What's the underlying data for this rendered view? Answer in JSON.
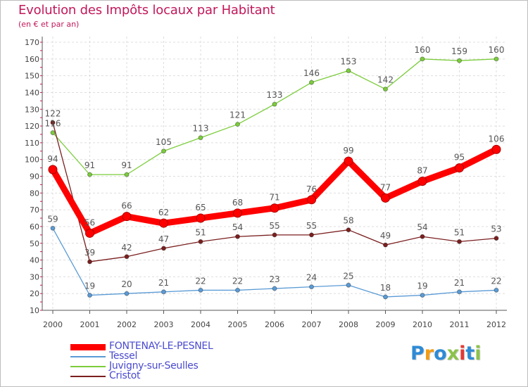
{
  "title": "Evolution des Impôts locaux par Habitant",
  "subtitle": "(en € et par an)",
  "logo": {
    "text": "Proxiti",
    "colors": [
      "#2e8bd6",
      "#f39c12",
      "#2e8bd6",
      "#8bc34a",
      "#e53935",
      "#2e8bd6",
      "#8bc34a"
    ]
  },
  "chart_data": {
    "type": "line",
    "x": [
      "2000",
      "2001",
      "2002",
      "2003",
      "2004",
      "2005",
      "2006",
      "2007",
      "2008",
      "2009",
      "2010",
      "2011",
      "2012"
    ],
    "ylim": [
      10,
      170
    ],
    "yticks": [
      10,
      20,
      30,
      40,
      50,
      60,
      70,
      80,
      90,
      100,
      110,
      120,
      130,
      140,
      150,
      160,
      170
    ],
    "grid": true,
    "legend_position": "bottom-left",
    "series": [
      {
        "name": "FONTENAY-LE-PESNEL",
        "color": "#ff0000",
        "values": [
          94,
          56,
          66,
          62,
          65,
          68,
          71,
          76,
          99,
          77,
          87,
          95,
          106
        ]
      },
      {
        "name": "Tessel",
        "color": "#5b9bd5",
        "values": [
          59,
          19,
          20,
          21,
          22,
          22,
          23,
          24,
          25,
          18,
          19,
          21,
          22
        ]
      },
      {
        "name": "Juvigny-sur-Seulles",
        "color": "#7ccd3c",
        "values": [
          116,
          91,
          91,
          105,
          113,
          121,
          133,
          146,
          153,
          142,
          160,
          159,
          160
        ]
      },
      {
        "name": "Cristot",
        "color": "#7b1f1f",
        "values": [
          122,
          39,
          42,
          47,
          51,
          54,
          55,
          55,
          58,
          49,
          54,
          51,
          53
        ]
      }
    ]
  }
}
